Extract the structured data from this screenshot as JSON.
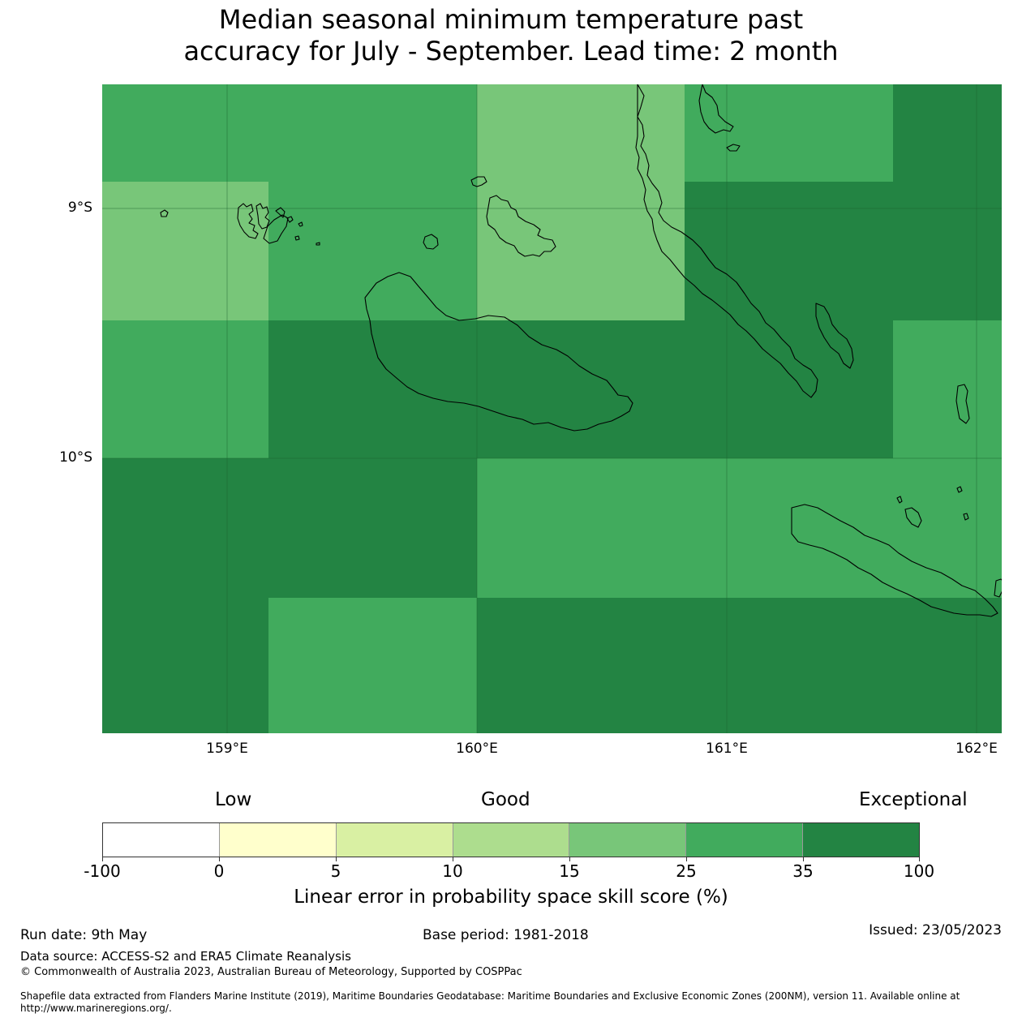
{
  "title_line1": "Median seasonal minimum temperature past",
  "title_line2": "accuracy for July - September. Lead time: 2 month",
  "map": {
    "lat_labels": [
      "9°S",
      "10°S"
    ],
    "lon_labels": [
      "159°E",
      "160°E",
      "161°E",
      "162°E"
    ],
    "grid_colors": {
      "c15": "#78c679",
      "c25": "#41ab5d",
      "c35": "#238443"
    }
  },
  "colorbar": {
    "category_words": [
      "Low",
      "Good",
      "Exceptional"
    ],
    "colors": [
      "#ffffff",
      "#ffffcc",
      "#d9f0a3",
      "#addd8e",
      "#78c679",
      "#41ab5d",
      "#238443"
    ],
    "ticks": [
      "-100",
      "0",
      "5",
      "10",
      "15",
      "25",
      "35",
      "100"
    ],
    "label": "Linear error in probability space skill score (%)"
  },
  "footer": {
    "run_date": "Run date: 9th May",
    "base_period": "Base period: 1981-2018",
    "issued": "Issued: 23/05/2023",
    "data_source": "Data source: ACCESS-S2 and ERA5 Climate Reanalysis",
    "copyright": "© Commonwealth of Australia 2023, Australian Bureau of Meteorology, Supported by COSPPac",
    "shapefile": "Shapefile data extracted from Flanders Marine Institute (2019), Maritime Boundaries Geodatabase: Maritime Boundaries and Exclusive Economic Zones (200NM), version 11. Available online at http://www.marineregions.org/."
  }
}
